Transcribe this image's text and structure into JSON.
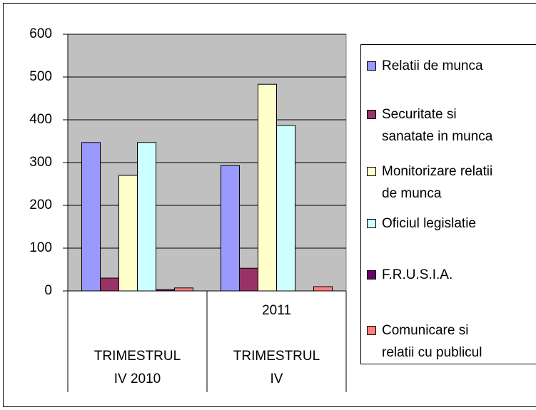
{
  "chart_data": {
    "type": "bar",
    "categories": [
      "TRIMESTRUL\nIV 2010",
      "2011\n\nTRIMESTRUL\nIV"
    ],
    "series": [
      {
        "name": "Relatii de munca",
        "color": "#9999ff",
        "values": [
          347,
          293
        ]
      },
      {
        "name": "Securitate si\nsanatate in munca",
        "color": "#993366",
        "values": [
          30,
          53
        ]
      },
      {
        "name": "Monitorizare relatii\nde munca",
        "color": "#ffffcc",
        "values": [
          270,
          483
        ]
      },
      {
        "name": "Oficiul legislatie",
        "color": "#ccffff",
        "values": [
          347,
          387
        ]
      },
      {
        "name": "F.R.U.S.I.A.",
        "color": "#660066",
        "values": [
          3,
          0
        ]
      },
      {
        "name": "Comunicare si\nrelatii cu publicul",
        "color": "#ff8080",
        "values": [
          7,
          10
        ]
      }
    ],
    "ylim": [
      0,
      600
    ],
    "yticks": [
      0,
      100,
      200,
      300,
      400,
      500,
      600
    ],
    "grid": true,
    "legend": "right"
  }
}
